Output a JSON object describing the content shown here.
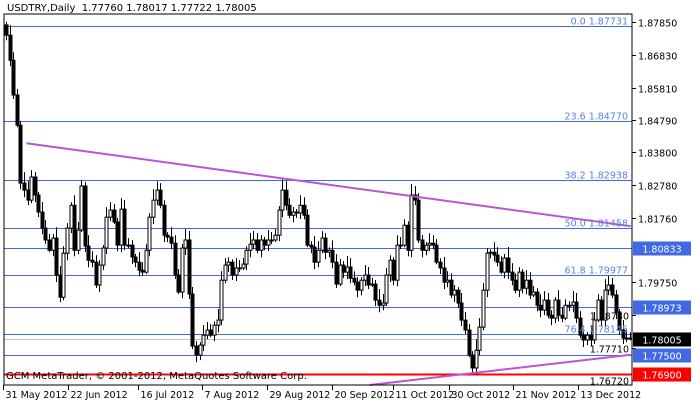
{
  "header": {
    "symbol": "USDTRY,Daily",
    "ohlc_text": "1.77760 1.78017 1.77722 1.78005"
  },
  "footer": {
    "copyright": "GCM MetaTrader, © 2001-2012, MetaQuotes Software Corp."
  },
  "colors": {
    "candle": "#000000",
    "fib_line": "#4169e1",
    "fib_text": "#5b7fe6",
    "trendline": "#ba55d3",
    "support": "#ff0000",
    "bid_line": "#c0c0c0"
  },
  "chart_data": {
    "type": "candlestick",
    "title": "USDTRY,Daily",
    "ylim": [
      1.7656,
      1.881
    ],
    "grid": false,
    "y_ticks": [
      "1.87850",
      "1.86830",
      "1.85810",
      "1.84790",
      "1.83800",
      "1.82780",
      "1.81760",
      "1.79750",
      "1.78730",
      "1.77710",
      "1.76720"
    ],
    "x_ticks": [
      "31 May 2012",
      "22 Jun 2012",
      "16 Jul 2012",
      "7 Aug 2012",
      "29 Aug 2012",
      "20 Sep 2012",
      "11 Oct 2012",
      "30 Oct 2012",
      "21 Nov 2012",
      "13 Dec 2012"
    ],
    "first_open": 1.8776,
    "closes": [
      1.8744,
      1.8666,
      1.8558,
      1.8464,
      1.8284,
      1.8262,
      1.8231,
      1.8303,
      1.8247,
      1.8194,
      1.8144,
      1.8107,
      1.8075,
      1.8113,
      1.7998,
      1.7929,
      1.8066,
      1.8144,
      1.8215,
      1.8075,
      1.8138,
      1.8275,
      1.8088,
      1.8044,
      1.8038,
      1.7967,
      1.8029,
      1.8082,
      1.8178,
      1.82,
      1.8163,
      1.8091,
      1.8203,
      1.8091,
      1.8091,
      1.8054,
      1.8038,
      1.8013,
      1.8007,
      1.8075,
      1.8178,
      1.8231,
      1.8262,
      1.8215,
      1.8122,
      1.8116,
      1.8097,
      1.7998,
      1.7945,
      1.8082,
      1.8107,
      1.7939,
      1.7777,
      1.7749,
      1.778,
      1.7811,
      1.7827,
      1.7811,
      1.7842,
      1.7858,
      1.7982,
      1.8029,
      1.8038,
      1.7998,
      1.802,
      1.802,
      1.8032,
      1.8075,
      1.8094,
      1.8107,
      1.8075,
      1.8107,
      1.8091,
      1.8107,
      1.8107,
      1.8122,
      1.82,
      1.8262,
      1.8215,
      1.8184,
      1.8194,
      1.8191,
      1.8215,
      1.8184,
      1.8091,
      1.8085,
      1.8038,
      1.8075,
      1.8113,
      1.8069,
      1.8075,
      1.8038,
      1.797,
      1.8029,
      1.8007,
      1.8023,
      1.7988,
      1.7976,
      1.7951,
      1.7982,
      1.7998,
      1.7967,
      1.797,
      1.792,
      1.7904,
      1.7911,
      1.7998,
      1.8044,
      1.7982,
      1.8091,
      1.8091,
      1.8153,
      1.8075,
      1.8247,
      1.8231,
      1.8107,
      1.8075,
      1.8091,
      1.8097,
      1.8091,
      1.8038,
      1.802,
      1.7976,
      1.7982,
      1.7936,
      1.7951,
      1.7911,
      1.7858,
      1.7827,
      1.7749,
      1.7709,
      1.7764,
      1.7836,
      1.7951,
      1.8066,
      1.8069,
      1.806,
      1.8038,
      1.8007,
      1.8051,
      1.8007,
      1.7982,
      1.7951,
      1.8007,
      1.7957,
      1.7982,
      1.7936,
      1.7945,
      1.7904,
      1.7889,
      1.792,
      1.7873,
      1.7864,
      1.792,
      1.7873,
      1.7864,
      1.7904,
      1.7904,
      1.7914,
      1.7864,
      1.7811,
      1.7796,
      1.7811,
      1.7796,
      1.7858,
      1.792,
      1.7858,
      1.7951,
      1.7967,
      1.7936,
      1.7883,
      1.7827,
      1.7802,
      1.7802,
      1.7801
    ],
    "fibonacci": [
      {
        "level": "0.0",
        "price": 1.87731,
        "label": "0.0 1.87731"
      },
      {
        "level": "23.6",
        "price": 1.8477,
        "label": "23.6 1.84770"
      },
      {
        "level": "38.2",
        "price": 1.82938,
        "label": "38.2 1.82938"
      },
      {
        "level": "50.0",
        "price": 1.81458,
        "label": "50.0 1.81458"
      },
      {
        "level": "61.8",
        "price": 1.79977,
        "label": "61.8 1.79977"
      },
      {
        "level": "76.4",
        "price": 1.78145,
        "label": "76.4 1.78145"
      }
    ],
    "horizontal_lines": [
      {
        "price": 1.80833,
        "label": "1.80833",
        "color": "#4169e1"
      },
      {
        "price": 1.78973,
        "label": "1.78973",
        "color": "#4169e1"
      },
      {
        "price": 1.78005,
        "label": "1.78005",
        "color": "#000000",
        "line": "#c0c0c0"
      },
      {
        "price": 1.775,
        "label": "1.77500",
        "color": "#4169e1"
      },
      {
        "price": 1.769,
        "label": "1.76900",
        "color": "#ff0000"
      }
    ],
    "trendlines": [
      {
        "from": [
          "8 Jun 2012",
          1.8408
        ],
        "to": [
          "31 Dec 2012",
          1.815
        ]
      },
      {
        "from": [
          "3 Oct 2012",
          1.7656
        ],
        "to": [
          "31 Dec 2012",
          1.775
        ]
      }
    ]
  }
}
